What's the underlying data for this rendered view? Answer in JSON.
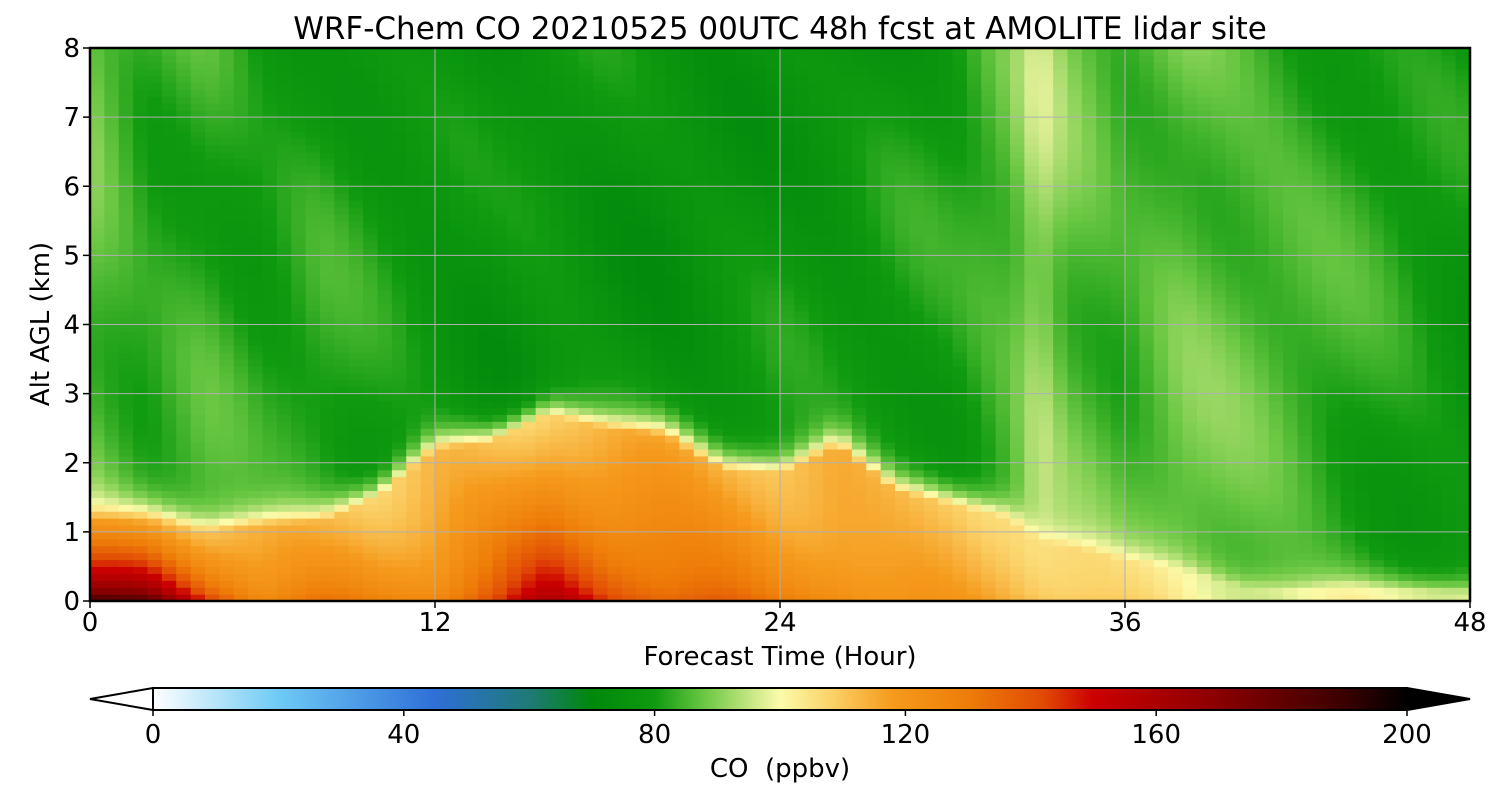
{
  "chart_data": {
    "type": "heatmap",
    "title": "WRF-Chem CO  20210525 00UTC 48h fcst at AMOLITE lidar site",
    "xlabel": "Forecast Time (Hour)",
    "ylabel": "Alt AGL (km)",
    "xlim": [
      0,
      48
    ],
    "ylim": [
      0,
      8
    ],
    "x_ticks": [
      0,
      12,
      24,
      36,
      48
    ],
    "y_ticks": [
      0,
      1,
      2,
      3,
      4,
      5,
      6,
      7,
      8
    ],
    "grid": true,
    "colorbar": {
      "label": "CO  (ppbv)",
      "orientation": "horizontal",
      "range": [
        0,
        200
      ],
      "ticks": [
        0,
        40,
        80,
        120,
        160,
        200
      ],
      "extend": "both",
      "colors": [
        {
          "v": 0,
          "c": "#ffffff"
        },
        {
          "v": 20,
          "c": "#6ecaf5"
        },
        {
          "v": 45,
          "c": "#2e6fd8"
        },
        {
          "v": 60,
          "c": "#1f7a76"
        },
        {
          "v": 70,
          "c": "#00880a"
        },
        {
          "v": 80,
          "c": "#0f9a10"
        },
        {
          "v": 88,
          "c": "#6cc843"
        },
        {
          "v": 96,
          "c": "#cfe98a"
        },
        {
          "v": 100,
          "c": "#fbfbaa"
        },
        {
          "v": 108,
          "c": "#fbd36a"
        },
        {
          "v": 118,
          "c": "#f59a1c"
        },
        {
          "v": 130,
          "c": "#ee7d08"
        },
        {
          "v": 142,
          "c": "#e14a05"
        },
        {
          "v": 150,
          "c": "#cc0000"
        },
        {
          "v": 170,
          "c": "#8a0000"
        },
        {
          "v": 190,
          "c": "#3a0000"
        },
        {
          "v": 200,
          "c": "#000000"
        }
      ]
    },
    "hours": [
      0,
      2,
      4,
      6,
      8,
      10,
      12,
      14,
      16,
      18,
      20,
      22,
      24,
      26,
      28,
      30,
      32,
      33,
      34,
      36,
      38,
      40,
      42,
      44,
      46,
      48
    ],
    "boundary_layer_top_km": [
      1.2,
      1.2,
      1.0,
      1.1,
      1.15,
      1.5,
      2.2,
      2.3,
      2.7,
      2.5,
      2.4,
      1.9,
      1.85,
      2.25,
      1.6,
      1.4,
      1.2,
      0.85,
      0.8,
      0.6,
      0.45,
      0.2,
      0.15,
      0.2,
      0.15,
      0.1
    ],
    "surface_co_ppbv": [
      190,
      185,
      150,
      130,
      135,
      130,
      130,
      142,
      160,
      145,
      138,
      138,
      132,
      130,
      122,
      118,
      115,
      112,
      110,
      106,
      102,
      100,
      100,
      103,
      100,
      96
    ],
    "free_troposphere_co_ppbv": [
      88,
      82,
      84,
      80,
      82,
      79,
      77,
      76,
      78,
      77,
      76,
      77,
      78,
      77,
      79,
      80,
      86,
      94,
      88,
      84,
      88,
      86,
      84,
      82,
      80,
      78
    ]
  }
}
